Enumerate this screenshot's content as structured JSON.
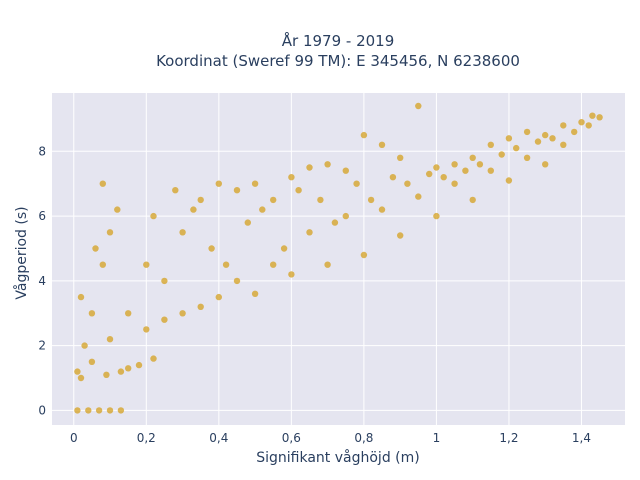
{
  "chart_data": {
    "type": "scatter",
    "title_lines": [
      "År 1979 - 2019",
      "Koordinat (Sweref 99 TM): E 345456, N 6238600"
    ],
    "xlabel": "Signifikant våghöjd (m)",
    "ylabel": "Vågperiod (s)",
    "xlim": [
      -0.06,
      1.52
    ],
    "ylim": [
      -0.45,
      9.8
    ],
    "x_ticks": [
      {
        "value": 0,
        "label": "0"
      },
      {
        "value": 0.2,
        "label": "0,2"
      },
      {
        "value": 0.4,
        "label": "0,4"
      },
      {
        "value": 0.6,
        "label": "0,6"
      },
      {
        "value": 0.8,
        "label": "0,8"
      },
      {
        "value": 1.0,
        "label": "1"
      },
      {
        "value": 1.2,
        "label": "1,2"
      },
      {
        "value": 1.4,
        "label": "1,4"
      }
    ],
    "y_ticks": [
      {
        "value": 0,
        "label": "0"
      },
      {
        "value": 2,
        "label": "2"
      },
      {
        "value": 4,
        "label": "4"
      },
      {
        "value": 6,
        "label": "6"
      },
      {
        "value": 8,
        "label": "8"
      }
    ],
    "grid": true,
    "legend": "none",
    "marker_color": "#d4a020",
    "background_color": "#e5e5f0",
    "grid_color": "#ffffff",
    "series": [
      {
        "points": [
          [
            0.01,
            0.0
          ],
          [
            0.04,
            0.0
          ],
          [
            0.07,
            0.0
          ],
          [
            0.1,
            0.0
          ],
          [
            0.13,
            0.0
          ],
          [
            0.01,
            1.2
          ],
          [
            0.03,
            2.0
          ],
          [
            0.05,
            3.0
          ],
          [
            0.08,
            4.5
          ],
          [
            0.1,
            5.5
          ],
          [
            0.12,
            6.2
          ],
          [
            0.08,
            7.0
          ],
          [
            0.02,
            3.5
          ],
          [
            0.06,
            5.0
          ],
          [
            0.15,
            1.3
          ],
          [
            0.2,
            2.5
          ],
          [
            0.25,
            4.0
          ],
          [
            0.3,
            5.5
          ],
          [
            0.35,
            6.5
          ],
          [
            0.4,
            7.0
          ],
          [
            0.45,
            6.8
          ],
          [
            0.5,
            7.0
          ],
          [
            0.55,
            6.5
          ],
          [
            0.6,
            7.2
          ],
          [
            0.65,
            7.5
          ],
          [
            0.7,
            7.6
          ],
          [
            0.75,
            7.4
          ],
          [
            0.8,
            8.5
          ],
          [
            0.85,
            8.2
          ],
          [
            0.9,
            7.8
          ],
          [
            0.95,
            9.4
          ],
          [
            1.0,
            7.5
          ],
          [
            1.05,
            7.6
          ],
          [
            1.1,
            7.8
          ],
          [
            1.15,
            8.2
          ],
          [
            1.2,
            8.4
          ],
          [
            1.25,
            8.6
          ],
          [
            1.3,
            8.5
          ],
          [
            1.35,
            8.8
          ],
          [
            1.4,
            8.9
          ],
          [
            1.43,
            9.1
          ],
          [
            1.45,
            9.05
          ],
          [
            1.42,
            8.8
          ],
          [
            0.3,
            3.0
          ],
          [
            0.4,
            3.5
          ],
          [
            0.5,
            3.6
          ],
          [
            0.6,
            4.2
          ],
          [
            0.7,
            4.5
          ],
          [
            0.8,
            4.8
          ],
          [
            0.9,
            5.4
          ],
          [
            1.0,
            6.0
          ],
          [
            1.1,
            6.5
          ],
          [
            1.2,
            7.1
          ],
          [
            1.3,
            7.6
          ],
          [
            0.25,
            2.8
          ],
          [
            0.35,
            3.2
          ],
          [
            0.45,
            4.0
          ],
          [
            0.55,
            4.5
          ],
          [
            0.65,
            5.5
          ],
          [
            0.75,
            6.0
          ],
          [
            0.85,
            6.2
          ],
          [
            0.95,
            6.6
          ],
          [
            1.05,
            7.0
          ],
          [
            1.15,
            7.4
          ],
          [
            1.25,
            7.8
          ],
          [
            1.35,
            8.2
          ],
          [
            0.02,
            1.0
          ],
          [
            0.05,
            1.5
          ],
          [
            0.09,
            1.1
          ],
          [
            0.13,
            1.2
          ],
          [
            0.18,
            1.4
          ],
          [
            0.22,
            1.6
          ],
          [
            0.1,
            2.2
          ],
          [
            0.15,
            3.0
          ],
          [
            0.2,
            4.5
          ],
          [
            0.22,
            6.0
          ],
          [
            0.28,
            6.8
          ],
          [
            0.33,
            6.2
          ],
          [
            0.38,
            5.0
          ],
          [
            0.42,
            4.5
          ],
          [
            0.48,
            5.8
          ],
          [
            0.52,
            6.2
          ],
          [
            0.58,
            5.0
          ],
          [
            0.62,
            6.8
          ],
          [
            0.68,
            6.5
          ],
          [
            0.72,
            5.8
          ],
          [
            0.78,
            7.0
          ],
          [
            0.82,
            6.5
          ],
          [
            0.88,
            7.2
          ],
          [
            0.92,
            7.0
          ],
          [
            0.98,
            7.3
          ],
          [
            1.02,
            7.2
          ],
          [
            1.08,
            7.4
          ],
          [
            1.12,
            7.6
          ],
          [
            1.18,
            7.9
          ],
          [
            1.22,
            8.1
          ],
          [
            1.28,
            8.3
          ],
          [
            1.32,
            8.4
          ],
          [
            1.38,
            8.6
          ]
        ]
      }
    ]
  }
}
